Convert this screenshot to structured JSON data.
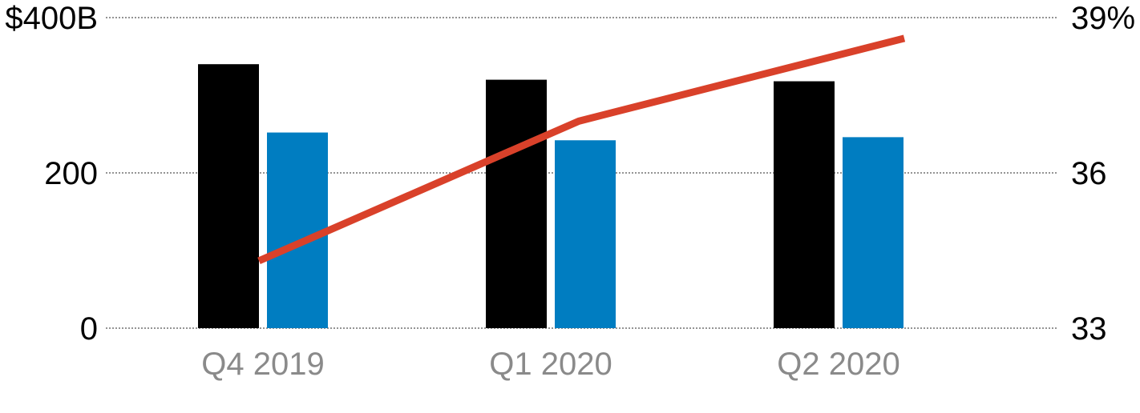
{
  "chart_data": {
    "type": "bar",
    "categories": [
      "Q4 2019",
      "Q1 2020",
      "Q2 2020"
    ],
    "series": [
      {
        "kind": "bar",
        "axis": "left",
        "color": "#000000",
        "values": [
          340,
          320,
          318
        ]
      },
      {
        "kind": "bar",
        "axis": "left",
        "color": "#007dc1",
        "values": [
          252,
          242,
          246
        ]
      },
      {
        "kind": "line",
        "axis": "right",
        "color": "#d9412a",
        "values": [
          34.3,
          37.0,
          38.6
        ]
      }
    ],
    "y_left": {
      "min": 0,
      "max": 400,
      "ticks": [
        0,
        200,
        400
      ],
      "tick_labels": [
        "0",
        "200",
        "$400B"
      ]
    },
    "y_right": {
      "min": 33,
      "max": 39,
      "ticks": [
        33,
        36,
        39
      ],
      "tick_labels": [
        "33",
        "36",
        "39%"
      ]
    },
    "grid": true,
    "legend": "none"
  }
}
